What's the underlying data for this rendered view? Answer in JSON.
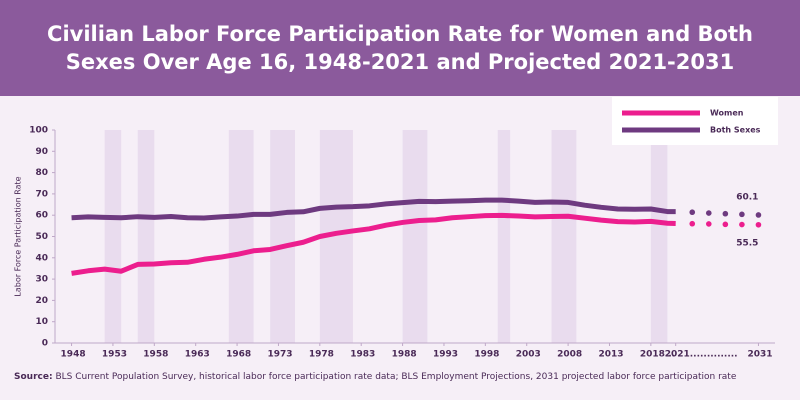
{
  "chart_data": {
    "type": "line",
    "title": "Civilian Labor Force Participation Rate for Women and Both Sexes Over Age 16, 1948-2021 and Projected 2021-2031",
    "y_label": "Labor Force Participation Rate",
    "source_label": "Source:",
    "source": "BLS Current Population Survey, historical labor force participation rate data; BLS Employment Projections, 2031 projected labor force participation rate",
    "x": [
      1948,
      1950,
      1952,
      1954,
      1956,
      1958,
      1960,
      1962,
      1964,
      1966,
      1968,
      1970,
      1972,
      1974,
      1976,
      1978,
      1980,
      1982,
      1984,
      1986,
      1988,
      1990,
      1992,
      1994,
      1996,
      1998,
      2000,
      2002,
      2004,
      2006,
      2008,
      2010,
      2012,
      2014,
      2016,
      2018,
      2020,
      2021
    ],
    "projection_x": [
      2021,
      2023,
      2025,
      2027,
      2029,
      2031
    ],
    "series": [
      {
        "name": "Women",
        "color": "#ec1e8e",
        "values": [
          32.7,
          33.9,
          34.7,
          33.7,
          36.9,
          37.1,
          37.7,
          37.9,
          39.3,
          40.3,
          41.6,
          43.3,
          43.9,
          45.7,
          47.3,
          50.0,
          51.5,
          52.6,
          53.6,
          55.3,
          56.6,
          57.5,
          57.8,
          58.8,
          59.3,
          59.8,
          59.9,
          59.6,
          59.2,
          59.4,
          59.5,
          58.6,
          57.7,
          57.0,
          56.8,
          57.1,
          56.2,
          56.1
        ],
        "projection": [
          56.1,
          56.0,
          55.9,
          55.7,
          55.6,
          55.5
        ]
      },
      {
        "name": "Both Sexes",
        "color": "#6e3a80",
        "values": [
          58.8,
          59.2,
          59.0,
          58.8,
          59.3,
          59.0,
          59.4,
          58.8,
          58.7,
          59.2,
          59.6,
          60.4,
          60.4,
          61.3,
          61.6,
          63.2,
          63.8,
          64.0,
          64.4,
          65.3,
          65.9,
          66.5,
          66.4,
          66.6,
          66.8,
          67.1,
          67.1,
          66.6,
          66.0,
          66.2,
          66.0,
          64.7,
          63.7,
          62.9,
          62.8,
          62.9,
          61.7,
          61.7
        ],
        "projection": [
          61.7,
          61.4,
          61.0,
          60.7,
          60.4,
          60.1
        ]
      }
    ],
    "shaded_ranges": [
      [
        1952,
        1954
      ],
      [
        1956,
        1958
      ],
      [
        1967,
        1970
      ],
      [
        1972,
        1975
      ],
      [
        1978,
        1982
      ],
      [
        1988,
        1991
      ],
      [
        1999.5,
        2001
      ],
      [
        2006,
        2009
      ],
      [
        2018,
        2020
      ]
    ],
    "shade_color": "#e9dcee",
    "xlim": [
      1946,
      2033
    ],
    "ylim": [
      0,
      100
    ],
    "yticks": [
      0,
      10,
      20,
      30,
      40,
      50,
      60,
      70,
      80,
      90,
      100
    ],
    "xticks": [
      1948,
      1953,
      1958,
      1963,
      1968,
      1973,
      1978,
      1983,
      1988,
      1993,
      1998,
      2003,
      2008,
      2013,
      {
        "value": 2018,
        "label": "2018..."
      },
      {
        "value": 2021,
        "label": "2021.............."
      },
      2031
    ],
    "legend": "upper right"
  }
}
